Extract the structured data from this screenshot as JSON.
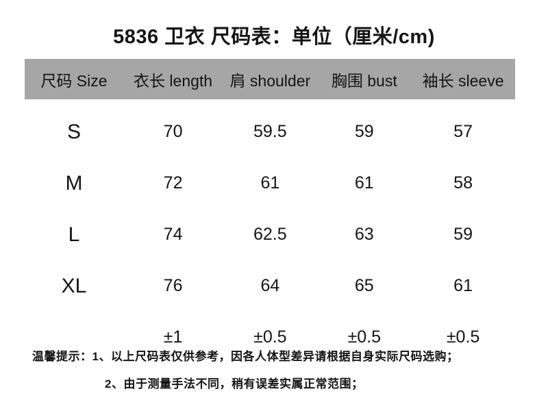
{
  "title": "5836 卫衣 尺码表：单位（厘米/cm)",
  "colors": {
    "header_bg": "#a6a6a6",
    "text": "#141414",
    "background": "#ffffff"
  },
  "table": {
    "headers": [
      "尺码 Size",
      "衣长 length",
      "肩 shoulder",
      "胸围 bust",
      "袖长 sleeve"
    ],
    "rows": [
      {
        "size": "S",
        "values": [
          "70",
          "59.5",
          "59",
          "57"
        ]
      },
      {
        "size": "M",
        "values": [
          "72",
          "61",
          "61",
          "58"
        ]
      },
      {
        "size": "L",
        "values": [
          "74",
          "62.5",
          "63",
          "59"
        ]
      },
      {
        "size": "XL",
        "values": [
          "76",
          "64",
          "65",
          "61"
        ]
      },
      {
        "size": "",
        "values": [
          "±1",
          "±0.5",
          "±0.5",
          "±0.5"
        ]
      }
    ]
  },
  "notes": {
    "line1": "温馨提示：1、以上尺码表仅供参考，因各人体型差异请根据自身实际尺码选购；",
    "line2": "2、由于测量手法不同，稍有误差实属正常范围；"
  }
}
